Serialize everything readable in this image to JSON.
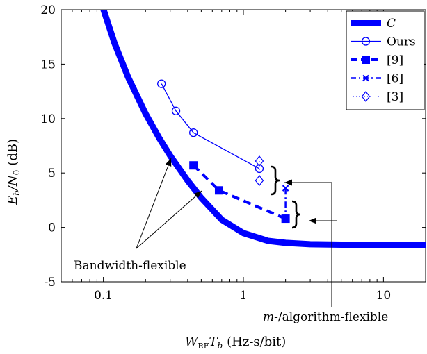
{
  "chart_data": {
    "type": "line",
    "xscale": "log",
    "xlim": [
      0.05,
      20
    ],
    "ylim": [
      -5,
      20
    ],
    "xticks": [
      0.1,
      1,
      10
    ],
    "xtick_labels": [
      "0.1",
      "1",
      "10"
    ],
    "yticks": [
      -5,
      0,
      5,
      10,
      15,
      20
    ],
    "ytick_labels": [
      "-5",
      "0",
      "5",
      "10",
      "15",
      "20"
    ],
    "xlabel": {
      "main": "W",
      "sub": "RF",
      "main2": "T",
      "sub2": "b",
      "units": "(Hz-s/bit)"
    },
    "ylabel": {
      "main": "E",
      "sub": "b",
      "main2": "/N",
      "sub2": "0",
      "units": "(dB)"
    },
    "grid": false,
    "legend_position": "top-right",
    "series": [
      {
        "name": "C",
        "style": "capacity",
        "color": "#0000ff",
        "x": [
          0.1,
          0.12,
          0.15,
          0.2,
          0.25,
          0.3,
          0.4,
          0.5,
          0.7,
          1,
          1.5,
          2,
          3,
          5,
          7,
          10,
          15,
          20
        ],
        "y": [
          20.06,
          16.94,
          13.82,
          10.46,
          8.23,
          6.59,
          4.29,
          2.71,
          0.7,
          -0.52,
          -1.24,
          -1.42,
          -1.55,
          -1.59,
          -1.59,
          -1.59,
          -1.59,
          -1.59
        ]
      },
      {
        "name": "Ours",
        "style": "circle-solid",
        "color": "#0000ff",
        "x": [
          0.26,
          0.33,
          0.44,
          1.3
        ],
        "y": [
          13.2,
          10.7,
          8.7,
          5.4
        ]
      },
      {
        "name": "[9]",
        "style": "square-dashed",
        "color": "#0000ff",
        "x": [
          0.44,
          0.67,
          2.0
        ],
        "y": [
          5.7,
          3.4,
          0.8
        ]
      },
      {
        "name": "[6]",
        "style": "x-dashdot",
        "color": "#0000ff",
        "x": [
          2.0,
          2.0
        ],
        "y": [
          3.6,
          0.8
        ]
      },
      {
        "name": "[3]",
        "style": "diamond-dotted",
        "color": "#0000ff",
        "x": [
          1.3,
          1.3
        ],
        "y": [
          6.1,
          4.3
        ]
      }
    ],
    "annotations": [
      {
        "id": "bandwidth",
        "text": "Bandwidth-flexible"
      },
      {
        "id": "algorithm",
        "text": "-/algorithm-flexible",
        "italic_prefix": "m"
      }
    ],
    "colors": {
      "series": "#0000ff",
      "annotation": "#000000"
    }
  }
}
